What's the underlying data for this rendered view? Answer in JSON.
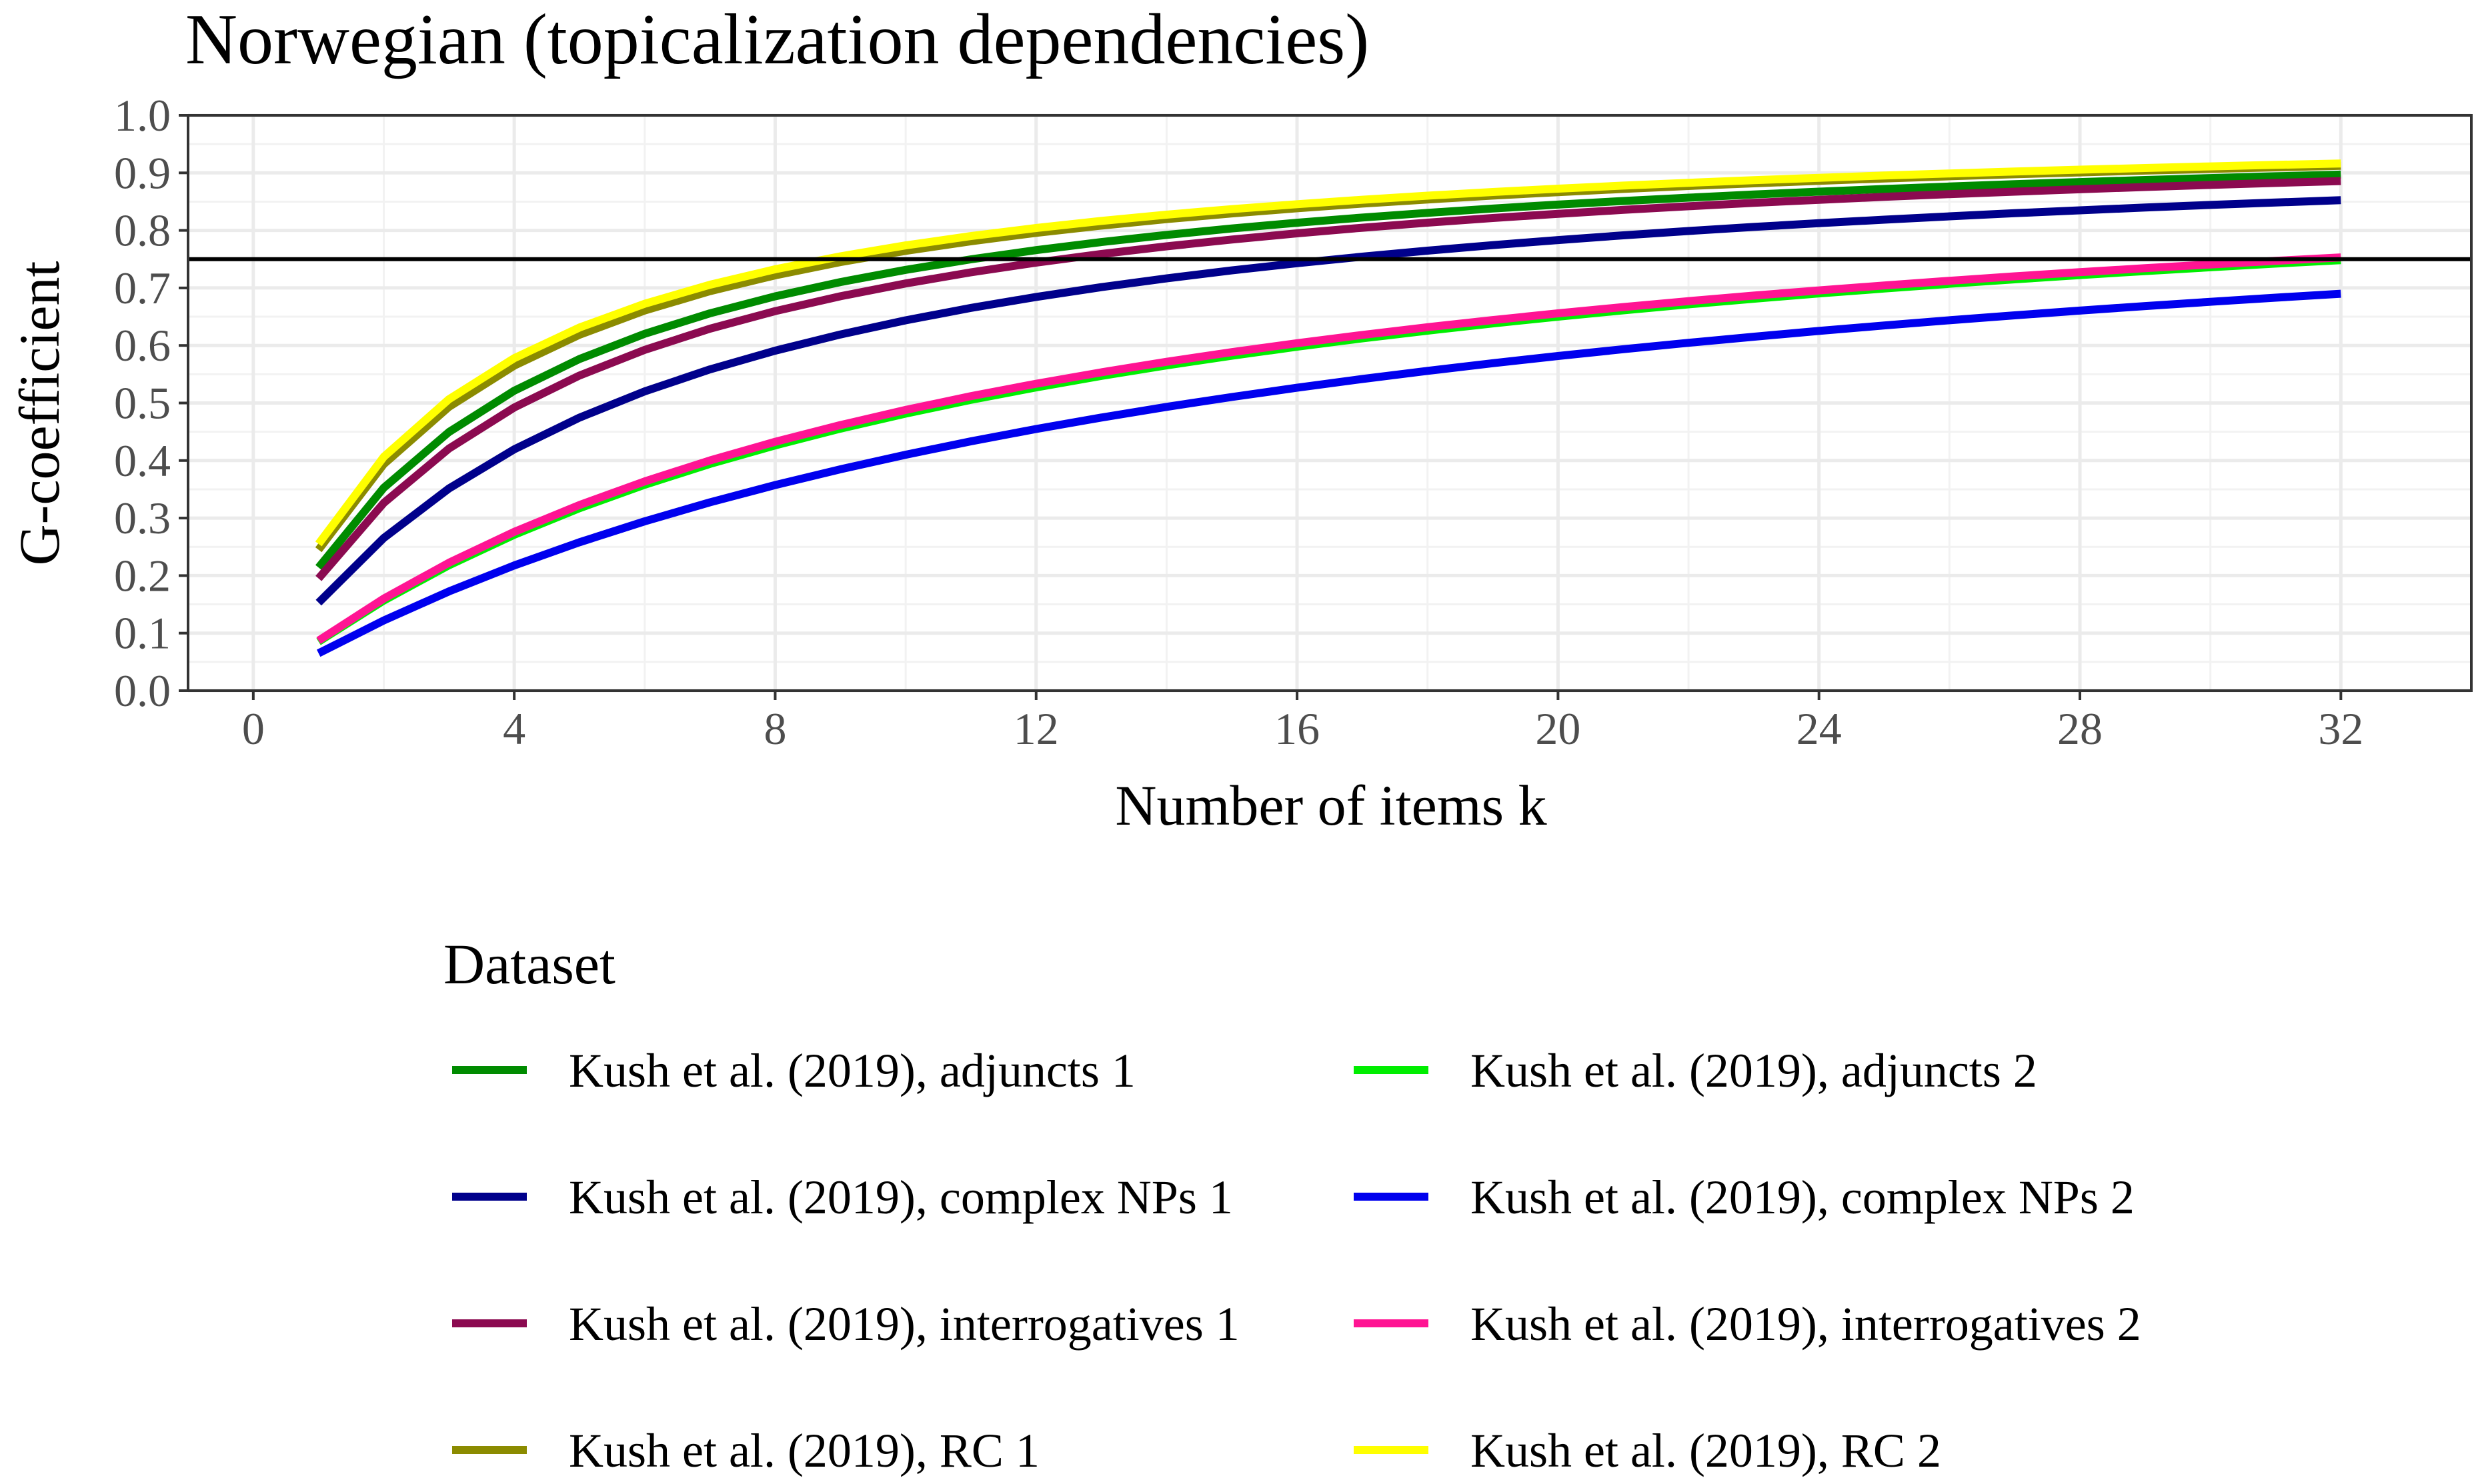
{
  "chart_data": {
    "type": "line",
    "title": "Norwegian (topicalization dependencies)",
    "xlabel": "Number of items k",
    "ylabel": "G-coefficient",
    "xlim": [
      -1,
      34
    ],
    "ylim": [
      0.0,
      1.0
    ],
    "xticks": [
      0,
      4,
      8,
      12,
      16,
      20,
      24,
      28,
      32
    ],
    "yticks": [
      0.0,
      0.1,
      0.2,
      0.3,
      0.4,
      0.5,
      0.6,
      0.7,
      0.8,
      0.9,
      1.0
    ],
    "xtick_labels": [
      "0",
      "4",
      "8",
      "12",
      "16",
      "20",
      "24",
      "28",
      "32"
    ],
    "ytick_labels": [
      "0.0",
      "0.1",
      "0.2",
      "0.3",
      "0.4",
      "0.5",
      "0.6",
      "0.7",
      "0.8",
      "0.9",
      "1.0"
    ],
    "grid": true,
    "reference_line": {
      "y": 0.75,
      "color": "#000000"
    },
    "k_range": [
      1,
      32
    ],
    "series_model": "G(k) = k*G1 / (1 + (k-1)*G1), where G1 is the one-item coefficient",
    "legend": {
      "title": "Dataset",
      "placement": "bottom"
    },
    "series": [
      {
        "name": "Kush et al. (2019), adjuncts 1",
        "color": "#008B00",
        "g1": 0.214
      },
      {
        "name": "Kush et al. (2019), adjuncts 2",
        "color": "#00EE00",
        "g1": 0.085
      },
      {
        "name": "Kush et al. (2019), complex NPs 1",
        "color": "#00008B",
        "g1": 0.153
      },
      {
        "name": "Kush et al. (2019), complex NPs 2",
        "color": "#0000EE",
        "g1": 0.065
      },
      {
        "name": "Kush et al. (2019), interrogatives 1",
        "color": "#8B0A50",
        "g1": 0.195
      },
      {
        "name": "Kush et al. (2019), interrogatives 2",
        "color": "#FF1493",
        "g1": 0.087
      },
      {
        "name": "Kush et al. (2019), RC 1",
        "color": "#8B8B00",
        "g1": 0.245
      },
      {
        "name": "Kush et al. (2019), RC 2",
        "color": "#FFFF00",
        "g1": 0.255
      }
    ]
  }
}
